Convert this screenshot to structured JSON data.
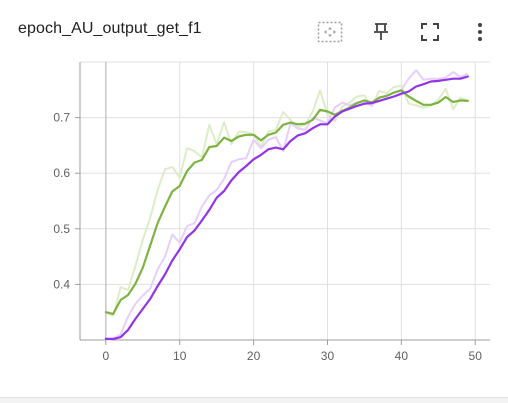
{
  "card": {
    "title": "epoch_AU_output_get_f1",
    "toolbar": {
      "fit_icon": "fit-domain-icon",
      "pin_icon": "pin-icon",
      "fullscreen_icon": "fullscreen-icon",
      "more_icon": "more-vert-icon"
    }
  },
  "colors": {
    "green": "#7cb342",
    "green_raw": "#dcedc8",
    "purple": "#9334e6",
    "purple_raw": "#e7cffb",
    "grid": "#e0e0e0",
    "zero_line": "#bdbdbd"
  },
  "chart_data": {
    "type": "line",
    "title": "",
    "xlabel": "",
    "ylabel": "",
    "xlim": [
      -3.5,
      52
    ],
    "ylim": [
      0.3,
      0.8
    ],
    "x_ticks": [
      0,
      10,
      20,
      30,
      40,
      50
    ],
    "x_tick_labels": [
      "0",
      "10",
      "20",
      "30",
      "40",
      "50"
    ],
    "y_ticks": [
      0.4,
      0.5,
      0.6,
      0.7
    ],
    "y_tick_labels": [
      "0.4",
      "0.5",
      "0.6",
      "0.7"
    ],
    "grid": true,
    "series": [
      {
        "color": "#7cb342",
        "raw_color": "#dcedc8",
        "x": [
          0,
          1,
          2,
          3,
          4,
          5,
          6,
          7,
          8,
          9,
          10,
          11,
          12,
          13,
          14,
          15,
          16,
          17,
          18,
          19,
          20,
          21,
          22,
          23,
          24,
          25,
          26,
          27,
          28,
          29,
          30,
          31,
          32,
          33,
          34,
          35,
          36,
          37,
          38,
          39,
          40,
          41,
          42,
          43,
          44,
          45,
          46,
          47,
          48,
          49
        ],
        "smoothed": [
          0.35,
          0.347,
          0.372,
          0.381,
          0.401,
          0.43,
          0.47,
          0.51,
          0.54,
          0.567,
          0.577,
          0.604,
          0.619,
          0.624,
          0.647,
          0.649,
          0.664,
          0.658,
          0.666,
          0.669,
          0.669,
          0.659,
          0.669,
          0.673,
          0.687,
          0.691,
          0.688,
          0.689,
          0.696,
          0.714,
          0.711,
          0.705,
          0.712,
          0.718,
          0.726,
          0.731,
          0.727,
          0.736,
          0.739,
          0.745,
          0.749,
          0.738,
          0.73,
          0.723,
          0.723,
          0.727,
          0.737,
          0.728,
          0.731,
          0.73
        ],
        "raw": [
          0.35,
          0.343,
          0.395,
          0.39,
          0.433,
          0.48,
          0.52,
          0.57,
          0.607,
          0.611,
          0.592,
          0.645,
          0.64,
          0.628,
          0.687,
          0.652,
          0.692,
          0.652,
          0.675,
          0.674,
          0.67,
          0.648,
          0.675,
          0.678,
          0.71,
          0.696,
          0.682,
          0.688,
          0.711,
          0.749,
          0.706,
          0.693,
          0.72,
          0.727,
          0.738,
          0.74,
          0.72,
          0.748,
          0.744,
          0.755,
          0.757,
          0.725,
          0.722,
          0.718,
          0.721,
          0.732,
          0.752,
          0.715,
          0.736,
          0.73
        ]
      },
      {
        "color": "#9334e6",
        "raw_color": "#e7cffb",
        "x": [
          0,
          1,
          2,
          3,
          4,
          5,
          6,
          7,
          8,
          9,
          10,
          11,
          12,
          13,
          14,
          15,
          16,
          17,
          18,
          19,
          20,
          21,
          22,
          23,
          24,
          25,
          26,
          27,
          28,
          29,
          30,
          31,
          32,
          33,
          34,
          35,
          36,
          37,
          38,
          39,
          40,
          41,
          42,
          43,
          44,
          45,
          46,
          47,
          48,
          49
        ],
        "smoothed": [
          0.302,
          0.302,
          0.305,
          0.318,
          0.338,
          0.356,
          0.374,
          0.397,
          0.418,
          0.443,
          0.463,
          0.485,
          0.497,
          0.515,
          0.534,
          0.556,
          0.568,
          0.587,
          0.602,
          0.613,
          0.625,
          0.633,
          0.643,
          0.646,
          0.643,
          0.658,
          0.668,
          0.672,
          0.681,
          0.688,
          0.688,
          0.702,
          0.711,
          0.716,
          0.721,
          0.725,
          0.726,
          0.73,
          0.734,
          0.738,
          0.743,
          0.747,
          0.756,
          0.76,
          0.765,
          0.766,
          0.768,
          0.77,
          0.77,
          0.774
        ],
        "raw": [
          0.3,
          0.302,
          0.31,
          0.342,
          0.365,
          0.38,
          0.392,
          0.427,
          0.45,
          0.49,
          0.475,
          0.505,
          0.51,
          0.54,
          0.56,
          0.57,
          0.59,
          0.62,
          0.625,
          0.627,
          0.66,
          0.645,
          0.66,
          0.665,
          0.64,
          0.69,
          0.68,
          0.678,
          0.7,
          0.695,
          0.69,
          0.718,
          0.727,
          0.722,
          0.727,
          0.729,
          0.722,
          0.735,
          0.74,
          0.745,
          0.75,
          0.77,
          0.785,
          0.768,
          0.77,
          0.77,
          0.772,
          0.782,
          0.773,
          0.779
        ]
      }
    ]
  }
}
